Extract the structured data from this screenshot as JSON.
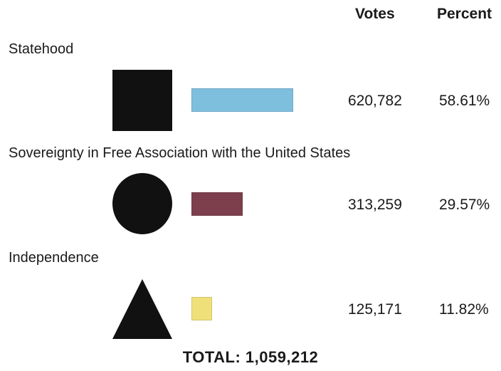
{
  "headers": {
    "votes": "Votes",
    "percent": "Percent"
  },
  "chart_data": {
    "type": "bar",
    "categories": [
      "Statehood",
      "Sovereignty in Free Association with the United States",
      "Independence"
    ],
    "values": [
      620782,
      313259,
      125171
    ],
    "votes_text": [
      "620,782",
      "313,259",
      "125,171"
    ],
    "percents": [
      58.61,
      29.57,
      11.82
    ],
    "percent_text": [
      "58.61%",
      "29.57%",
      "11.82%"
    ],
    "symbols": [
      "square-icon",
      "circle-icon",
      "triangle-icon"
    ],
    "colors": [
      "#7fbfde",
      "#7d3f4c",
      "#efe07a"
    ],
    "total_text": "TOTAL: 1,059,212"
  }
}
